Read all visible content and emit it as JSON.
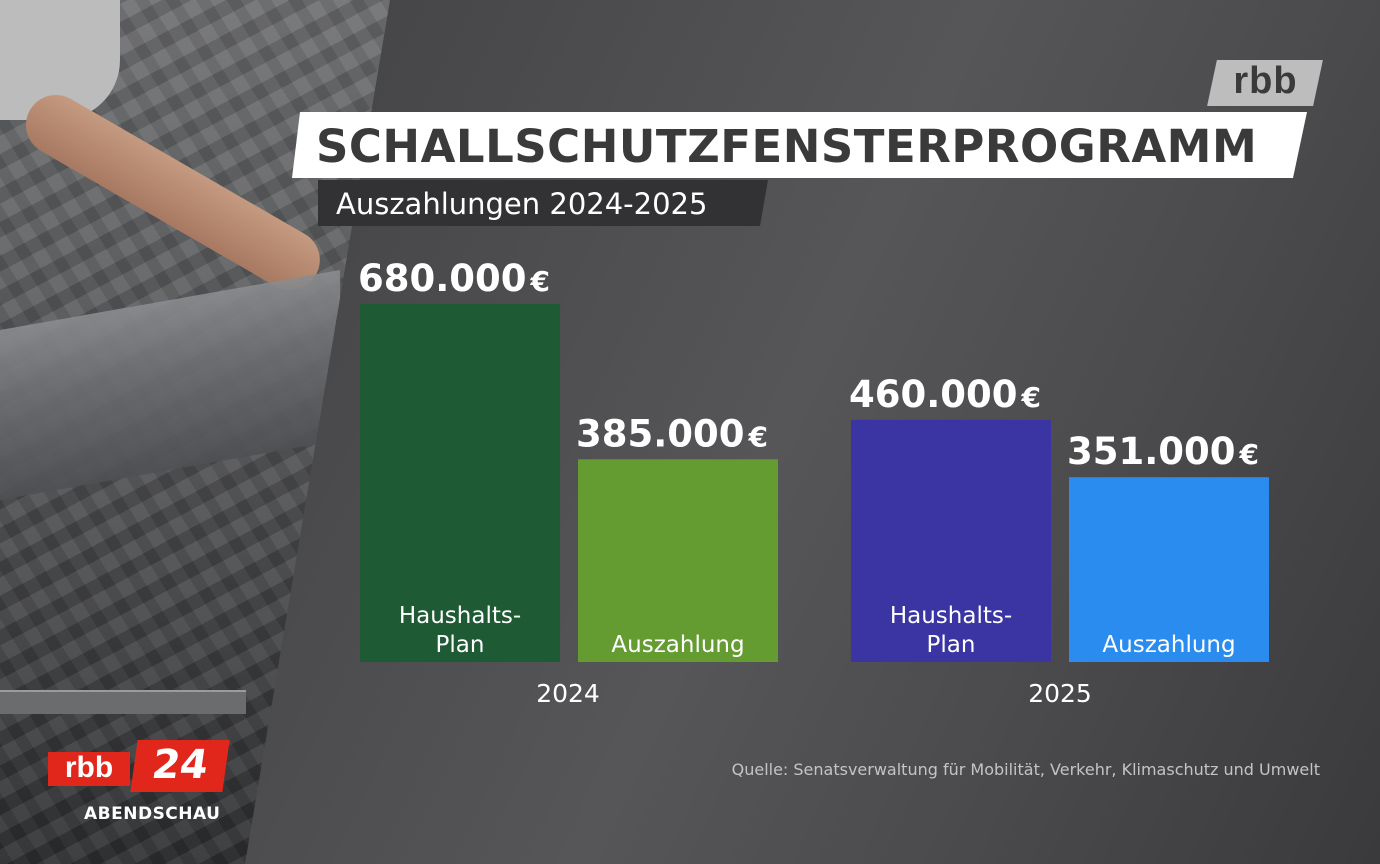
{
  "brand": {
    "top_logo": "rbb",
    "channel_logo_rbb": "rbb",
    "channel_logo_number": "24",
    "show_name": "ABENDSCHAU",
    "accent_red": "#e1261c"
  },
  "header": {
    "title": "SCHALLSCHUTZFENSTERPROGRAMM",
    "subtitle": "Auszahlungen 2024-2025"
  },
  "source": "Quelle: Senatsverwaltung für Mobilität, Verkehr, Klimaschutz und Umwelt",
  "chart_data": {
    "type": "bar",
    "title": "SCHALLSCHUTZFENSTERPROGRAMM",
    "subtitle": "Auszahlungen 2024-2025",
    "categories": [
      "2024",
      "2025"
    ],
    "currency": "€",
    "groups": [
      {
        "category": "2024",
        "bars": [
          {
            "label_lines": [
              "Haushalts-",
              "Plan"
            ],
            "value": 680000,
            "value_label": "680.000",
            "color": "#1e5a34"
          },
          {
            "label_lines": [
              "Auszahlung"
            ],
            "value": 385000,
            "value_label": "385.000",
            "color": "#659c32"
          }
        ]
      },
      {
        "category": "2025",
        "bars": [
          {
            "label_lines": [
              "Haushalts-",
              "Plan"
            ],
            "value": 460000,
            "value_label": "460.000",
            "color": "#3a35a2"
          },
          {
            "label_lines": [
              "Auszahlung"
            ],
            "value": 351000,
            "value_label": "351.000",
            "color": "#2b8cf0"
          }
        ]
      }
    ],
    "grid": false,
    "legend": "none"
  }
}
